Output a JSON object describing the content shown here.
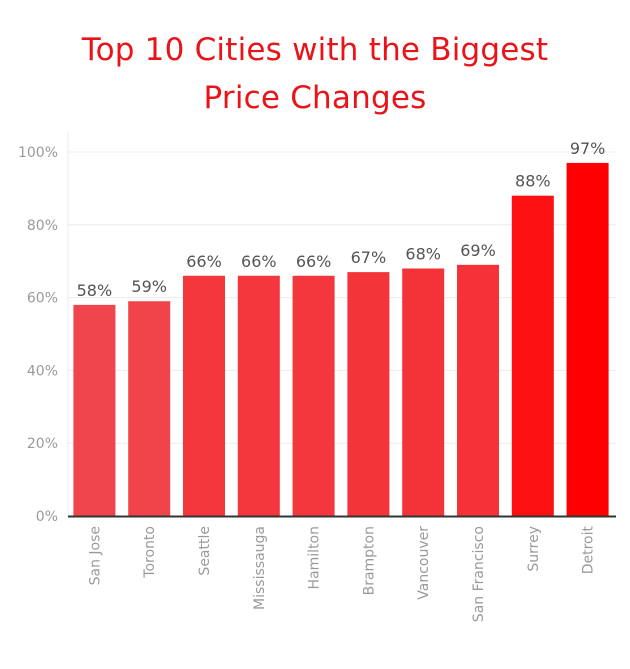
{
  "title": {
    "line1": "Top 10 Cities with the Biggest",
    "line2": "Price Changes"
  },
  "colors": {
    "title": "#e8141a",
    "bar_low": "#f0454c",
    "bar_high": "#ff0000",
    "tick_text": "#9a9a9a",
    "label_text": "#555555",
    "grid": "#ececec",
    "axis": "#333333"
  },
  "chart_data": {
    "type": "bar",
    "title": "Top 10 Cities with the Biggest Price Changes",
    "xlabel": "",
    "ylabel": "",
    "categories": [
      "San Jose",
      "Toronto",
      "Seattle",
      "Mississauga",
      "Hamilton",
      "Brampton",
      "Vancouver",
      "San Francisco",
      "Surrey",
      "Detroit"
    ],
    "values": [
      58,
      59,
      66,
      66,
      66,
      67,
      68,
      69,
      88,
      97
    ],
    "data_labels": [
      "58%",
      "59%",
      "66%",
      "66%",
      "66%",
      "67%",
      "68%",
      "69%",
      "88%",
      "97%"
    ],
    "ylim": [
      0,
      100
    ],
    "yticks": [
      0,
      20,
      40,
      60,
      80,
      100
    ],
    "ytick_labels": [
      "0%",
      "20%",
      "40%",
      "60%",
      "80%",
      "100%"
    ],
    "grid": true,
    "legend": "none"
  }
}
